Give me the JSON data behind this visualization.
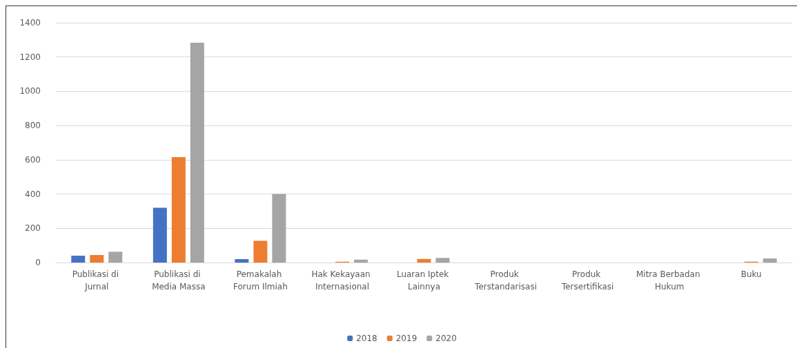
{
  "chart_data": {
    "type": "bar",
    "categories": [
      "Publikasi di Jurnal",
      "Publikasi di Media Massa",
      "Pemakalah Forum Ilmiah",
      "Hak Kekayaan Internasional",
      "Luaran Iptek Lainnya",
      "Produk Terstandarisasi",
      "Produk Tersertifikasi",
      "Mitra Berbadan Hukum",
      "Buku"
    ],
    "series": [
      {
        "name": "2018",
        "color": "#4472c4",
        "values": [
          40,
          320,
          20,
          0,
          0,
          0,
          0,
          0,
          0
        ]
      },
      {
        "name": "2019",
        "color": "#ed7d31",
        "values": [
          44,
          616,
          127,
          5,
          21,
          0,
          0,
          0,
          5
        ]
      },
      {
        "name": "2020",
        "color": "#a5a5a5",
        "values": [
          63,
          1283,
          400,
          17,
          27,
          0,
          0,
          0,
          24
        ]
      }
    ],
    "ylim": [
      0,
      1400
    ],
    "yticks": [
      0,
      200,
      400,
      600,
      800,
      1000,
      1200,
      1400
    ],
    "grid": "y",
    "legend": "bottom"
  }
}
